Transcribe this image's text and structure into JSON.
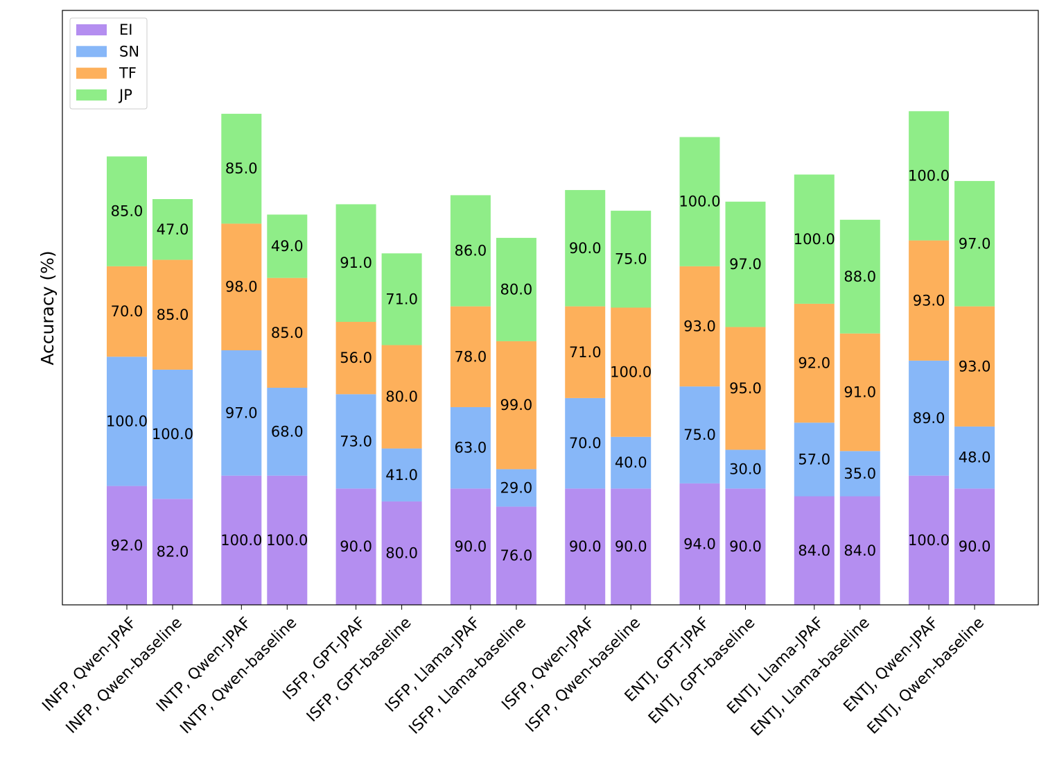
{
  "chart_data": {
    "type": "bar",
    "stacked": true,
    "ylabel": "Accuracy (%)",
    "xlabel": "",
    "title": "",
    "ylim": [
      0,
      460
    ],
    "grid": false,
    "legend_position": "top-left",
    "categories": [
      "INFP, Qwen-JPAF",
      "INFP, Qwen-baseline",
      "INTP, Qwen-JPAF",
      "INTP, Qwen-baseline",
      "ISFP, GPT-JPAF",
      "ISFP, GPT-baseline",
      "ISFP, Llama-JPAF",
      "ISFP, Llama-baseline",
      "ISFP, Qwen-JPAF",
      "ISFP, Qwen-baseline",
      "ENTJ, GPT-JPAF",
      "ENTJ, GPT-baseline",
      "ENTJ, Llama-JPAF",
      "ENTJ, Llama-baseline",
      "ENTJ, Qwen-JPAF",
      "ENTJ, Qwen-baseline"
    ],
    "series": [
      {
        "name": "EI",
        "color": "#b48ef0",
        "values": [
          92,
          82,
          100,
          100,
          90,
          80,
          90,
          76,
          90,
          90,
          94,
          90,
          84,
          84,
          100,
          90
        ]
      },
      {
        "name": "SN",
        "color": "#87b7f8",
        "values": [
          100,
          100,
          97,
          68,
          73,
          41,
          63,
          29,
          70,
          40,
          75,
          30,
          57,
          35,
          89,
          48
        ]
      },
      {
        "name": "TF",
        "color": "#fdb05b",
        "values": [
          70,
          85,
          98,
          85,
          56,
          80,
          78,
          99,
          71,
          100,
          93,
          95,
          92,
          91,
          93,
          93
        ]
      },
      {
        "name": "JP",
        "color": "#8fed88",
        "values": [
          85,
          47,
          85,
          49,
          91,
          71,
          86,
          80,
          90,
          75,
          100,
          97,
          100,
          88,
          100,
          97
        ]
      }
    ]
  }
}
